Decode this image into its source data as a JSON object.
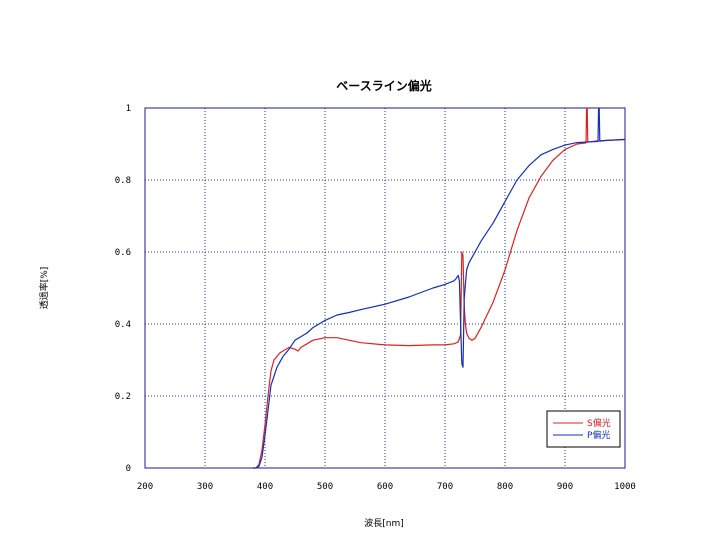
{
  "chart_data": {
    "type": "line",
    "title": "ベースライン偏光",
    "xlabel": "波長[nm]",
    "ylabel": "透過率[%]",
    "xlim": [
      200,
      1000
    ],
    "ylim": [
      0,
      1
    ],
    "xticks": [
      "200",
      "300",
      "400",
      "500",
      "600",
      "700",
      "800",
      "900",
      "1000"
    ],
    "yticks": [
      "0",
      "0.2",
      "0.4",
      "0.6",
      "0.8",
      "1"
    ],
    "grid": true,
    "legend": "bottom-right",
    "series": [
      {
        "name": "S偏光",
        "color": "#e02020",
        "x": [
          380,
          385,
          390,
          395,
          400,
          405,
          410,
          415,
          420,
          425,
          430,
          440,
          450,
          455,
          460,
          470,
          480,
          500,
          520,
          540,
          560,
          600,
          640,
          680,
          700,
          715,
          722,
          726,
          728,
          730,
          732,
          734,
          736,
          740,
          745,
          750,
          760,
          780,
          800,
          820,
          840,
          860,
          880,
          900,
          920,
          935,
          936,
          937,
          938,
          950,
          970,
          1000
        ],
        "y": [
          0.0,
          0.0,
          0.01,
          0.05,
          0.12,
          0.2,
          0.27,
          0.3,
          0.31,
          0.32,
          0.325,
          0.335,
          0.33,
          0.325,
          0.335,
          0.345,
          0.355,
          0.362,
          0.362,
          0.355,
          0.348,
          0.342,
          0.34,
          0.342,
          0.342,
          0.345,
          0.35,
          0.37,
          0.6,
          0.59,
          0.45,
          0.4,
          0.375,
          0.36,
          0.355,
          0.36,
          0.39,
          0.46,
          0.55,
          0.66,
          0.75,
          0.81,
          0.855,
          0.885,
          0.9,
          0.903,
          1.0,
          1.0,
          0.905,
          0.908,
          0.91,
          0.912
        ]
      },
      {
        "name": "P偏光",
        "color": "#1030c0",
        "x": [
          380,
          385,
          390,
          395,
          400,
          405,
          410,
          420,
          430,
          440,
          450,
          460,
          470,
          480,
          500,
          520,
          540,
          560,
          600,
          640,
          680,
          700,
          715,
          718,
          722,
          724,
          726,
          728,
          730,
          732,
          736,
          740,
          750,
          760,
          780,
          800,
          820,
          840,
          860,
          880,
          900,
          920,
          940,
          955,
          956,
          957,
          958,
          970,
          1000
        ],
        "y": [
          0.0,
          0.0,
          0.005,
          0.03,
          0.09,
          0.16,
          0.23,
          0.28,
          0.31,
          0.33,
          0.355,
          0.365,
          0.375,
          0.39,
          0.41,
          0.425,
          0.432,
          0.44,
          0.455,
          0.475,
          0.5,
          0.51,
          0.52,
          0.525,
          0.535,
          0.52,
          0.4,
          0.29,
          0.28,
          0.47,
          0.55,
          0.57,
          0.6,
          0.63,
          0.68,
          0.74,
          0.8,
          0.84,
          0.87,
          0.885,
          0.897,
          0.904,
          0.906,
          0.907,
          1.0,
          1.0,
          0.908,
          0.91,
          0.913
        ]
      }
    ]
  }
}
